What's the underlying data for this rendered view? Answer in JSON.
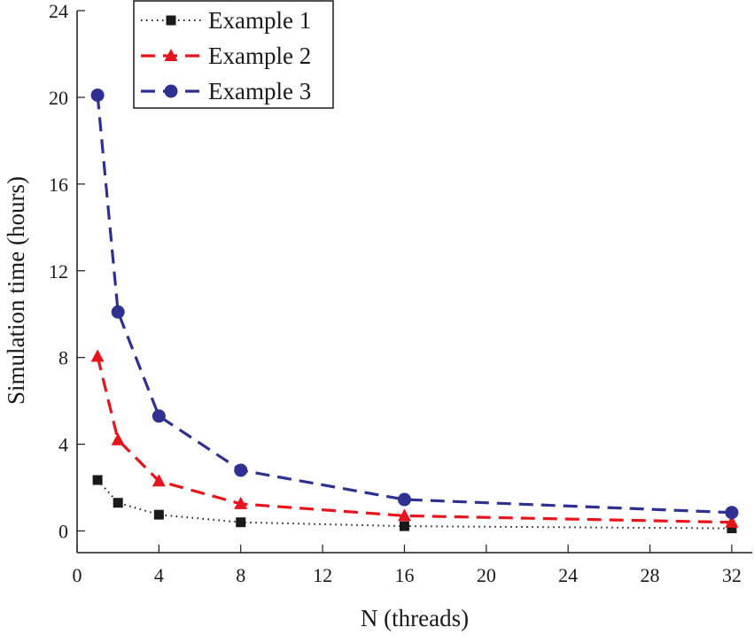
{
  "chart_data": {
    "type": "line",
    "title": "",
    "xlabel": "N (threads)",
    "ylabel": "Simulation time (hours)",
    "xlim": [
      0,
      33
    ],
    "ylim": [
      -1,
      24
    ],
    "xticks": [
      0,
      4,
      8,
      12,
      16,
      20,
      24,
      28,
      32
    ],
    "yticks": [
      0,
      4,
      8,
      12,
      16,
      20,
      24
    ],
    "x": [
      1,
      2,
      4,
      8,
      16,
      32
    ],
    "legend_position": "top-left",
    "series": [
      {
        "name": "Example 1",
        "color": "#1a1a1a",
        "line_style": "dotted",
        "marker": "square",
        "values": [
          2.35,
          1.3,
          0.75,
          0.4,
          0.22,
          0.12
        ]
      },
      {
        "name": "Example 2",
        "color": "#e8141b",
        "line_style": "dashed",
        "marker": "triangle",
        "values": [
          8.05,
          4.2,
          2.3,
          1.25,
          0.7,
          0.4
        ]
      },
      {
        "name": "Example 3",
        "color": "#2e3192",
        "line_style": "dashed",
        "marker": "circle",
        "values": [
          20.1,
          10.1,
          5.3,
          2.8,
          1.45,
          0.85
        ]
      }
    ]
  }
}
